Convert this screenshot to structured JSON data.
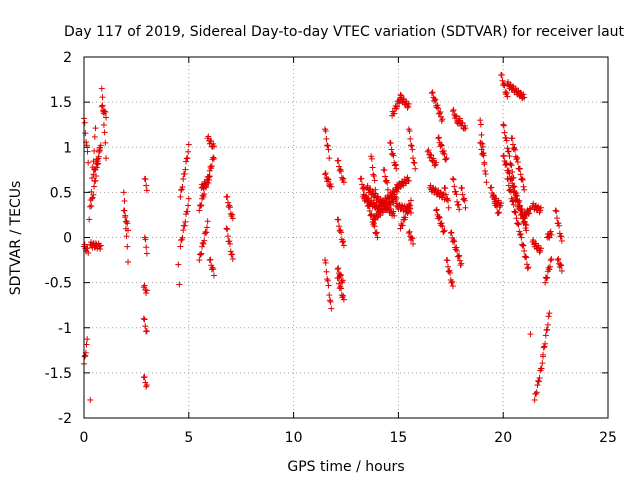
{
  "chart_data": {
    "type": "scatter",
    "title": "Day 117 of 2019, Sidereal Day-to-day VTEC variation (SDTVAR) for receiver laut",
    "xlabel": "GPS time / hours",
    "ylabel": "SDTVAR / TECUs",
    "xlim": [
      0,
      25
    ],
    "ylim": [
      -2,
      2
    ],
    "xticks": [
      0,
      5,
      10,
      15,
      20,
      25
    ],
    "yticks": [
      -2,
      -1.5,
      -1,
      -0.5,
      0,
      0.5,
      1,
      1.5,
      2
    ],
    "xtick_labels": [
      "0",
      "5",
      "10",
      "15",
      "20",
      "25"
    ],
    "ytick_labels": [
      "-2",
      "-1.5",
      "-1",
      "-0.5",
      "0",
      "0.5",
      "1",
      "1.5",
      "2"
    ],
    "grid": true,
    "marker": "+",
    "series": [
      {
        "name": "SDTVAR",
        "color": "#e00000",
        "segments": [
          {
            "x": [
              0.0,
              0.2
            ],
            "y": [
              1.32,
              0.85
            ]
          },
          {
            "x": [
              0.0,
              0.2
            ],
            "y": [
              -0.1,
              -0.15
            ]
          },
          {
            "x": [
              0.0,
              0.15
            ],
            "y": [
              -1.4,
              -1.15
            ]
          },
          {
            "x": [
              0.25,
              0.55
            ],
            "y": [
              0.2,
              1.2
            ]
          },
          {
            "x": [
              0.3,
              0.8
            ],
            "y": [
              -0.08,
              -0.1
            ]
          },
          {
            "x": [
              0.35,
              0.8
            ],
            "y": [
              0.35,
              1.05
            ]
          },
          {
            "x": [
              0.45,
              0.75
            ],
            "y": [
              0.7,
              0.95
            ]
          },
          {
            "x": [
              0.85,
              1.05
            ],
            "y": [
              1.65,
              0.9
            ]
          },
          {
            "x": [
              0.85,
              1.05
            ],
            "y": [
              1.45,
              1.35
            ]
          },
          {
            "x": [
              0.3
            ],
            "y": [
              -1.8
            ]
          },
          {
            "x": [
              1.9,
              2.1
            ],
            "y": [
              0.5,
              -0.25
            ]
          },
          {
            "x": [
              1.9,
              2.1
            ],
            "y": [
              0.3,
              0.1
            ]
          },
          {
            "x": [
              2.9,
              3.0
            ],
            "y": [
              0.65,
              0.55
            ]
          },
          {
            "x": [
              2.9,
              3.0
            ],
            "y": [
              0.0,
              -0.15
            ]
          },
          {
            "x": [
              2.85,
              3.0
            ],
            "y": [
              -0.55,
              -0.6
            ]
          },
          {
            "x": [
              2.85,
              3.0
            ],
            "y": [
              -0.9,
              -1.05
            ]
          },
          {
            "x": [
              2.85,
              3.0
            ],
            "y": [
              -1.55,
              -1.65
            ]
          },
          {
            "x": [
              4.5,
              4.55
            ],
            "y": [
              -0.3,
              -0.55
            ]
          },
          {
            "x": [
              4.6,
              5.0
            ],
            "y": [
              0.45,
              1.0
            ]
          },
          {
            "x": [
              4.6,
              5.0
            ],
            "y": [
              -0.1,
              0.4
            ]
          },
          {
            "x": [
              5.5,
              6.2
            ],
            "y": [
              0.3,
              0.9
            ]
          },
          {
            "x": [
              5.5,
              5.9
            ],
            "y": [
              -0.25,
              0.15
            ]
          },
          {
            "x": [
              5.6,
              6.0
            ],
            "y": [
              0.55,
              0.65
            ]
          },
          {
            "x": [
              5.9,
              6.2
            ],
            "y": [
              1.1,
              1.0
            ]
          },
          {
            "x": [
              6.0,
              6.2
            ],
            "y": [
              -0.25,
              -0.4
            ]
          },
          {
            "x": [
              6.8,
              7.1
            ],
            "y": [
              0.45,
              0.2
            ]
          },
          {
            "x": [
              6.8,
              7.1
            ],
            "y": [
              0.1,
              -0.25
            ]
          },
          {
            "x": [
              11.5,
              11.7
            ],
            "y": [
              1.2,
              0.9
            ]
          },
          {
            "x": [
              11.5,
              11.8
            ],
            "y": [
              0.7,
              0.55
            ]
          },
          {
            "x": [
              11.5,
              11.8
            ],
            "y": [
              -0.25,
              -0.8
            ]
          },
          {
            "x": [
              12.1,
              12.4
            ],
            "y": [
              0.85,
              0.6
            ]
          },
          {
            "x": [
              12.1,
              12.4
            ],
            "y": [
              0.2,
              -0.1
            ]
          },
          {
            "x": [
              12.1,
              12.4
            ],
            "y": [
              -0.45,
              -0.7
            ]
          },
          {
            "x": [
              12.1,
              12.35
            ],
            "y": [
              -0.35,
              -0.5
            ]
          },
          {
            "x": [
              13.2,
              14.0
            ],
            "y": [
              0.65,
              0.0
            ]
          },
          {
            "x": [
              13.3,
              14.2
            ],
            "y": [
              0.45,
              0.3
            ]
          },
          {
            "x": [
              13.5,
              14.8
            ],
            "y": [
              0.55,
              0.25
            ]
          },
          {
            "x": [
              13.8,
              14.9
            ],
            "y": [
              0.2,
              0.45
            ]
          },
          {
            "x": [
              14.1,
              15.0
            ],
            "y": [
              0.35,
              0.55
            ]
          },
          {
            "x": [
              13.7,
              13.9
            ],
            "y": [
              0.9,
              0.55
            ]
          },
          {
            "x": [
              14.3,
              14.5
            ],
            "y": [
              0.75,
              0.55
            ]
          },
          {
            "x": [
              14.6,
              14.9
            ],
            "y": [
              1.05,
              0.75
            ]
          },
          {
            "x": [
              14.7,
              15.1
            ],
            "y": [
              1.35,
              1.55
            ]
          },
          {
            "x": [
              15.1,
              15.5
            ],
            "y": [
              1.55,
              1.45
            ]
          },
          {
            "x": [
              15.5,
              15.8
            ],
            "y": [
              1.2,
              0.75
            ]
          },
          {
            "x": [
              14.9,
              15.5
            ],
            "y": [
              0.55,
              0.65
            ]
          },
          {
            "x": [
              14.9,
              15.6
            ],
            "y": [
              0.35,
              0.3
            ]
          },
          {
            "x": [
              15.1,
              15.6
            ],
            "y": [
              0.1,
              0.4
            ]
          },
          {
            "x": [
              15.5,
              15.7
            ],
            "y": [
              0.05,
              -0.05
            ]
          },
          {
            "x": [
              16.4,
              16.8
            ],
            "y": [
              0.95,
              0.8
            ]
          },
          {
            "x": [
              16.6,
              17.1
            ],
            "y": [
              1.6,
              1.3
            ]
          },
          {
            "x": [
              16.9,
              17.3
            ],
            "y": [
              1.1,
              0.85
            ]
          },
          {
            "x": [
              16.5,
              17.2
            ],
            "y": [
              0.55,
              0.45
            ]
          },
          {
            "x": [
              16.8,
              17.2
            ],
            "y": [
              0.3,
              0.05
            ]
          },
          {
            "x": [
              17.3,
              17.6
            ],
            "y": [
              -0.25,
              -0.55
            ]
          },
          {
            "x": [
              17.2,
              17.4
            ],
            "y": [
              0.55,
              0.35
            ]
          },
          {
            "x": [
              17.6,
              17.9
            ],
            "y": [
              1.4,
              1.25
            ]
          },
          {
            "x": [
              17.6,
              17.9
            ],
            "y": [
              0.65,
              0.3
            ]
          },
          {
            "x": [
              17.5,
              18.0
            ],
            "y": [
              0.05,
              -0.3
            ]
          },
          {
            "x": [
              17.9,
              18.2
            ],
            "y": [
              1.3,
              1.2
            ]
          },
          {
            "x": [
              18.0,
              18.2
            ],
            "y": [
              0.55,
              0.35
            ]
          },
          {
            "x": [
              18.9,
              19.2
            ],
            "y": [
              1.3,
              0.6
            ]
          },
          {
            "x": [
              18.9,
              19.1
            ],
            "y": [
              1.05,
              0.85
            ]
          },
          {
            "x": [
              19.4,
              19.8
            ],
            "y": [
              0.55,
              0.25
            ]
          },
          {
            "x": [
              19.5,
              19.9
            ],
            "y": [
              0.45,
              0.35
            ]
          },
          {
            "x": [
              19.9,
              20.2
            ],
            "y": [
              1.8,
              1.55
            ]
          },
          {
            "x": [
              20.2,
              21.0
            ],
            "y": [
              1.7,
              1.55
            ]
          },
          {
            "x": [
              20.0,
              20.5
            ],
            "y": [
              1.25,
              0.65
            ]
          },
          {
            "x": [
              20.0,
              21.1
            ],
            "y": [
              0.9,
              0.15
            ]
          },
          {
            "x": [
              20.2,
              21.2
            ],
            "y": [
              0.65,
              -0.35
            ]
          },
          {
            "x": [
              20.4,
              21.0
            ],
            "y": [
              1.1,
              0.55
            ]
          },
          {
            "x": [
              20.5,
              21.1
            ],
            "y": [
              0.5,
              0.1
            ]
          },
          {
            "x": [
              21.0,
              21.3
            ],
            "y": [
              0.25,
              0.3
            ]
          },
          {
            "x": [
              21.3
            ],
            "y": [
              -1.07
            ]
          },
          {
            "x": [
              21.4,
              21.8
            ],
            "y": [
              0.35,
              0.3
            ]
          },
          {
            "x": [
              21.4,
              21.8
            ],
            "y": [
              -0.05,
              -0.15
            ]
          },
          {
            "x": [
              21.5,
              21.9
            ],
            "y": [
              -1.8,
              -1.35
            ]
          },
          {
            "x": [
              21.9,
              22.2
            ],
            "y": [
              -1.3,
              -0.85
            ]
          },
          {
            "x": [
              22.0,
              22.3
            ],
            "y": [
              -0.5,
              -0.25
            ]
          },
          {
            "x": [
              22.1,
              22.3
            ],
            "y": [
              0.0,
              0.05
            ]
          },
          {
            "x": [
              22.5,
              22.8
            ],
            "y": [
              0.3,
              -0.05
            ]
          },
          {
            "x": [
              22.6,
              22.8
            ],
            "y": [
              -0.25,
              -0.35
            ]
          }
        ]
      }
    ]
  }
}
